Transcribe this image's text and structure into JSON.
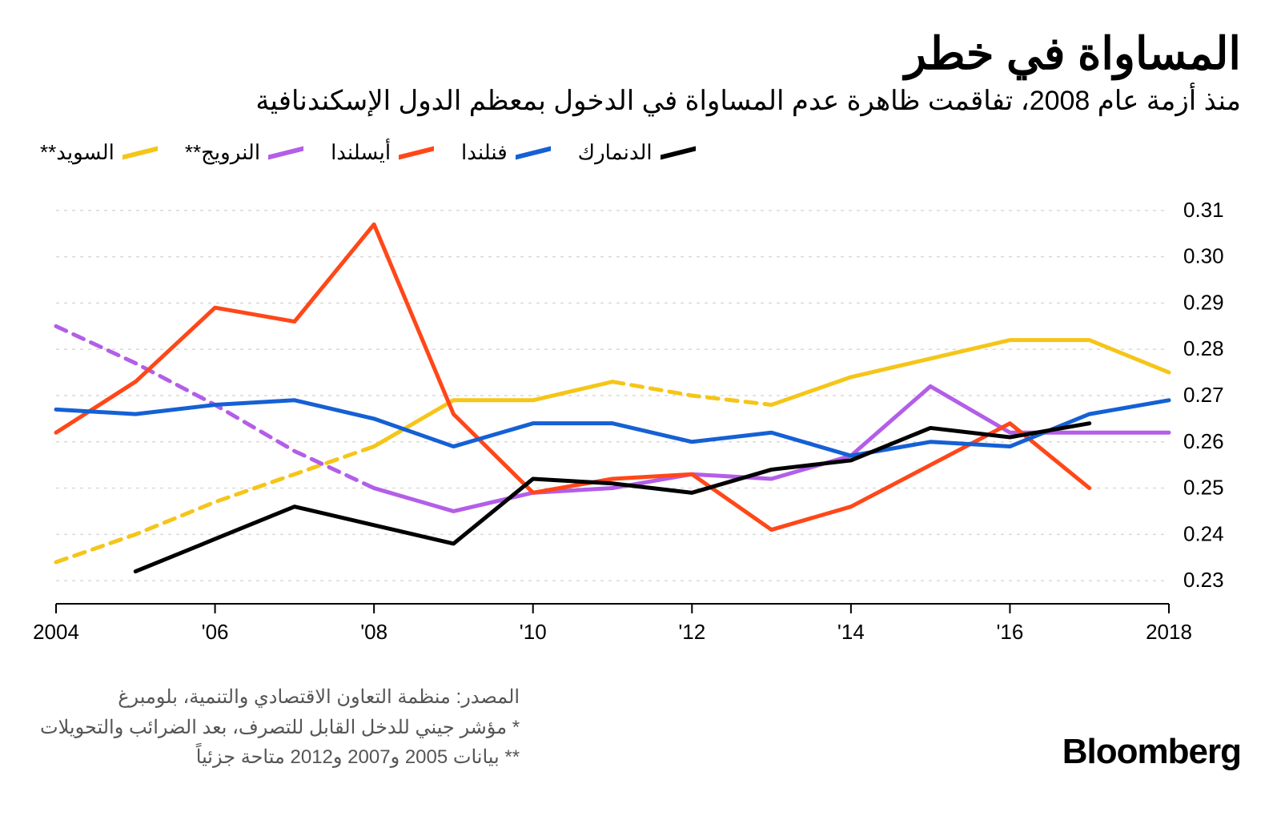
{
  "title": "المساواة في خطر",
  "subtitle": "منذ أزمة عام 2008، تفاقمت ظاهرة عدم المساواة في الدخول بمعظم الدول الإسكندنافية",
  "brand": "Bloomberg",
  "footer": {
    "source": "المصدر: منظمة التعاون الاقتصادي والتنمية، بلومبرغ",
    "note1": "* مؤشر جيني للدخل القابل للتصرف، بعد الضرائب والتحويلات",
    "note2": "** بيانات 2005 و2007 و2012 متاحة جزئياً"
  },
  "chart": {
    "type": "line",
    "background_color": "#ffffff",
    "grid_color": "#d9d9d9",
    "axis_color": "#000000",
    "tick_font_size": 26,
    "tick_color": "#000000",
    "line_width": 5,
    "dash_pattern": "14 10",
    "x": {
      "min": 2004,
      "max": 2018,
      "ticks": [
        2004,
        2006,
        2008,
        2010,
        2012,
        2014,
        2016,
        2018
      ],
      "tick_labels": [
        "2004",
        "'06",
        "'08",
        "'10",
        "'12",
        "'14",
        "'16",
        "2018"
      ]
    },
    "y": {
      "min": 0.225,
      "max": 0.315,
      "ticks": [
        0.23,
        0.24,
        0.25,
        0.26,
        0.27,
        0.28,
        0.29,
        0.3,
        0.31
      ],
      "tick_labels": [
        "0.23",
        "0.24",
        "0.25",
        "0.26",
        "0.27",
        "0.28",
        "0.29",
        "0.30",
        "0.31"
      ]
    },
    "legend_order": [
      "denmark",
      "finland",
      "iceland",
      "norway",
      "sweden"
    ],
    "series": {
      "denmark": {
        "label": "الدنمارك",
        "color": "#000000",
        "segments": [
          {
            "dashed": false,
            "points": [
              [
                2005,
                0.232
              ],
              [
                2006,
                0.239
              ],
              [
                2007,
                0.246
              ],
              [
                2008,
                0.242
              ],
              [
                2009,
                0.238
              ],
              [
                2010,
                0.252
              ],
              [
                2011,
                0.251
              ],
              [
                2012,
                0.249
              ],
              [
                2013,
                0.254
              ],
              [
                2014,
                0.256
              ],
              [
                2015,
                0.263
              ],
              [
                2016,
                0.261
              ],
              [
                2017,
                0.264
              ]
            ]
          }
        ]
      },
      "finland": {
        "label": "فنلندا",
        "color": "#1560d4",
        "segments": [
          {
            "dashed": false,
            "points": [
              [
                2004,
                0.267
              ],
              [
                2005,
                0.266
              ],
              [
                2006,
                0.268
              ],
              [
                2007,
                0.269
              ],
              [
                2008,
                0.265
              ],
              [
                2009,
                0.259
              ],
              [
                2010,
                0.264
              ],
              [
                2011,
                0.264
              ],
              [
                2012,
                0.26
              ],
              [
                2013,
                0.262
              ],
              [
                2014,
                0.257
              ],
              [
                2015,
                0.26
              ],
              [
                2016,
                0.259
              ],
              [
                2017,
                0.266
              ],
              [
                2018,
                0.269
              ]
            ]
          }
        ]
      },
      "iceland": {
        "label": "أيسلندا",
        "color": "#ff4719",
        "segments": [
          {
            "dashed": false,
            "points": [
              [
                2004,
                0.262
              ],
              [
                2005,
                0.273
              ],
              [
                2006,
                0.289
              ],
              [
                2007,
                0.286
              ],
              [
                2008,
                0.307
              ],
              [
                2009,
                0.266
              ],
              [
                2010,
                0.249
              ],
              [
                2011,
                0.252
              ],
              [
                2012,
                0.253
              ],
              [
                2013,
                0.241
              ],
              [
                2014,
                0.246
              ],
              [
                2015,
                0.255
              ],
              [
                2016,
                0.264
              ],
              [
                2017,
                0.25
              ]
            ]
          }
        ]
      },
      "norway": {
        "label": "النرويج**",
        "color": "#b35ee8",
        "segments": [
          {
            "dashed": true,
            "points": [
              [
                2004,
                0.285
              ],
              [
                2005,
                0.277
              ],
              [
                2006,
                0.268
              ],
              [
                2007,
                0.258
              ],
              [
                2008,
                0.25
              ]
            ]
          },
          {
            "dashed": false,
            "points": [
              [
                2008,
                0.25
              ],
              [
                2009,
                0.245
              ],
              [
                2010,
                0.249
              ],
              [
                2011,
                0.25
              ],
              [
                2012,
                0.253
              ],
              [
                2013,
                0.252
              ],
              [
                2014,
                0.257
              ],
              [
                2015,
                0.272
              ],
              [
                2016,
                0.262
              ],
              [
                2017,
                0.262
              ],
              [
                2018,
                0.262
              ]
            ]
          }
        ]
      },
      "sweden": {
        "label": "السويد**",
        "color": "#f5c518",
        "segments": [
          {
            "dashed": true,
            "points": [
              [
                2004,
                0.234
              ],
              [
                2005,
                0.24
              ],
              [
                2006,
                0.247
              ],
              [
                2007,
                0.253
              ],
              [
                2008,
                0.259
              ]
            ]
          },
          {
            "dashed": false,
            "points": [
              [
                2008,
                0.259
              ],
              [
                2009,
                0.269
              ],
              [
                2010,
                0.269
              ],
              [
                2011,
                0.273
              ]
            ]
          },
          {
            "dashed": true,
            "points": [
              [
                2011,
                0.273
              ],
              [
                2012,
                0.27
              ],
              [
                2013,
                0.268
              ]
            ]
          },
          {
            "dashed": false,
            "points": [
              [
                2013,
                0.268
              ],
              [
                2014,
                0.274
              ],
              [
                2015,
                0.278
              ],
              [
                2016,
                0.282
              ],
              [
                2017,
                0.282
              ],
              [
                2018,
                0.275
              ]
            ]
          }
        ]
      }
    }
  }
}
